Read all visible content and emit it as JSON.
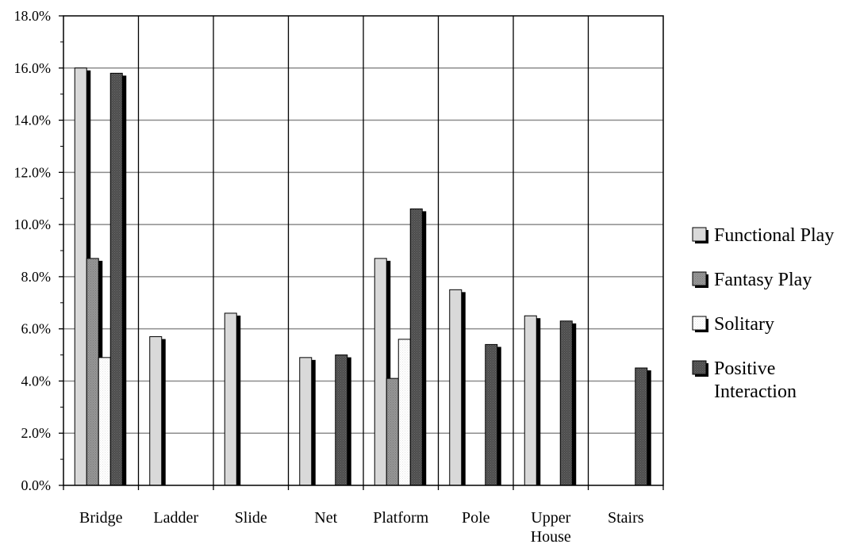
{
  "chart_data": {
    "type": "bar",
    "categories": [
      "Bridge",
      "Ladder",
      "Slide",
      "Net",
      "Platform",
      "Pole",
      "Upper House",
      "Stairs"
    ],
    "category_lines": [
      [
        "Bridge"
      ],
      [
        "Ladder"
      ],
      [
        "Slide"
      ],
      [
        "Net"
      ],
      [
        "Platform"
      ],
      [
        "Pole"
      ],
      [
        "Upper",
        "House"
      ],
      [
        "Stairs"
      ]
    ],
    "series": [
      {
        "name": "Functional Play",
        "values": [
          16.0,
          5.7,
          6.6,
          4.9,
          8.7,
          7.5,
          6.5,
          0
        ],
        "color": "#d9d9d9"
      },
      {
        "name": "Fantasy Play",
        "values": [
          8.7,
          0,
          0,
          0,
          4.1,
          0,
          0,
          0
        ],
        "color": "#969696"
      },
      {
        "name": "Solitary",
        "values": [
          4.9,
          0,
          0,
          0,
          5.6,
          0,
          0,
          0
        ],
        "color": "#ffffff"
      },
      {
        "name": "Positive Interaction",
        "values": [
          15.8,
          0,
          0,
          5.0,
          10.6,
          5.4,
          6.3,
          4.5
        ],
        "color": "#4d4d4d"
      }
    ],
    "legend_lines": [
      [
        "Functional Play"
      ],
      [
        "Fantasy Play"
      ],
      [
        "Solitary"
      ],
      [
        "Positive",
        "Interaction"
      ]
    ],
    "yticks": [
      "0.0%",
      "2.0%",
      "4.0%",
      "6.0%",
      "8.0%",
      "10.0%",
      "12.0%",
      "14.0%",
      "16.0%",
      "18.0%"
    ],
    "ylim": [
      0,
      18
    ],
    "title": "",
    "xlabel": "",
    "ylabel": "",
    "grid": true,
    "legend_position": "right",
    "shadow_color": "#000000"
  }
}
